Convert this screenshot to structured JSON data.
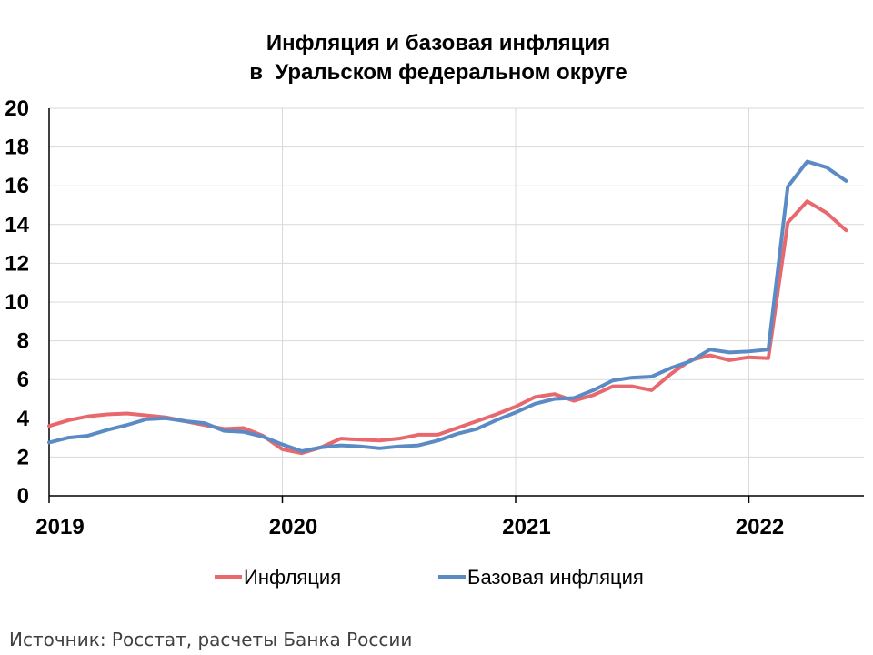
{
  "chart_data": {
    "type": "line",
    "title": [
      "Инфляция и базовая инфляция",
      "в  Уральском федеральном округе"
    ],
    "xlabel": "",
    "ylabel": "",
    "ylim": [
      0,
      20
    ],
    "y_ticks": [
      "0",
      "2",
      "4",
      "6",
      "8",
      "10",
      "12",
      "14",
      "16",
      "18",
      "20"
    ],
    "x_ticks": [
      "2019",
      "2020",
      "2021",
      "2022"
    ],
    "grid": true,
    "legend_position": "bottom",
    "x_start": "2019-01",
    "x": [
      "2019-01",
      "2019-02",
      "2019-03",
      "2019-04",
      "2019-05",
      "2019-06",
      "2019-07",
      "2019-08",
      "2019-09",
      "2019-10",
      "2019-11",
      "2019-12",
      "2020-01",
      "2020-02",
      "2020-03",
      "2020-04",
      "2020-05",
      "2020-06",
      "2020-07",
      "2020-08",
      "2020-09",
      "2020-10",
      "2020-11",
      "2020-12",
      "2021-01",
      "2021-02",
      "2021-03",
      "2021-04",
      "2021-05",
      "2021-06",
      "2021-07",
      "2021-08",
      "2021-09",
      "2021-10",
      "2021-11",
      "2021-12",
      "2022-01",
      "2022-02",
      "2022-03",
      "2022-04",
      "2022-05",
      "2022-06"
    ],
    "series": [
      {
        "name": "Инфляция",
        "color": "#E8686E",
        "values": [
          3.6,
          3.9,
          4.1,
          4.2,
          4.25,
          4.15,
          4.05,
          3.85,
          3.65,
          3.45,
          3.5,
          3.1,
          2.4,
          2.2,
          2.5,
          2.95,
          2.9,
          2.85,
          2.95,
          3.15,
          3.15,
          3.5,
          3.85,
          4.2,
          4.6,
          5.1,
          5.25,
          4.9,
          5.2,
          5.65,
          5.65,
          5.45,
          6.3,
          7.0,
          7.25,
          7.0,
          7.15,
          7.1,
          14.1,
          15.2,
          14.6,
          13.7
        ]
      },
      {
        "name": "Базовая инфляция",
        "color": "#5B8BC5",
        "values": [
          2.75,
          3.0,
          3.1,
          3.4,
          3.65,
          3.95,
          4.0,
          3.85,
          3.75,
          3.35,
          3.3,
          3.05,
          2.65,
          2.3,
          2.5,
          2.6,
          2.55,
          2.45,
          2.55,
          2.6,
          2.85,
          3.2,
          3.45,
          3.9,
          4.3,
          4.75,
          5.0,
          5.05,
          5.45,
          5.95,
          6.1,
          6.15,
          6.6,
          6.95,
          7.55,
          7.4,
          7.45,
          7.55,
          15.95,
          17.25,
          16.95,
          16.25
        ]
      }
    ]
  },
  "source_note": "Источник: Росстат, расчеты Банка России"
}
